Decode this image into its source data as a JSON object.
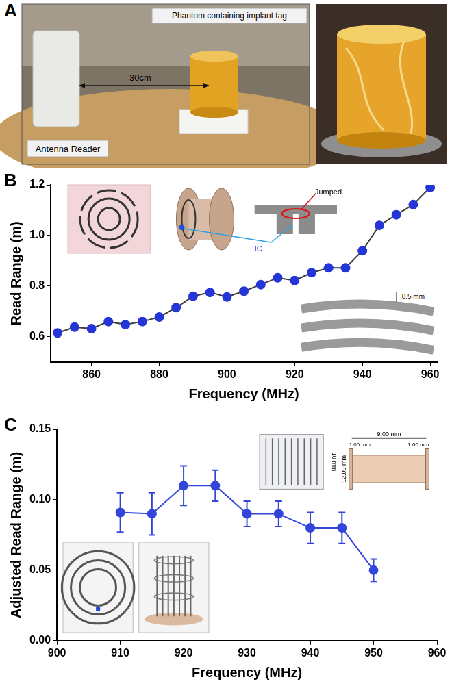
{
  "panels": [
    {
      "letter": "A",
      "texts": {
        "phantom": "Phantom containing implant tag",
        "distance": "30cm",
        "reader": "Antenna Reader"
      }
    }
  ],
  "chart_data": [
    {
      "panel": "B",
      "type": "line",
      "x": [
        850,
        855,
        860,
        865,
        870,
        875,
        880,
        885,
        890,
        895,
        900,
        905,
        910,
        915,
        920,
        925,
        930,
        935,
        940,
        945,
        950,
        955,
        960
      ],
      "values": [
        0.615,
        0.638,
        0.632,
        0.66,
        0.648,
        0.66,
        0.678,
        0.715,
        0.76,
        0.775,
        0.757,
        0.78,
        0.806,
        0.833,
        0.822,
        0.853,
        0.872,
        0.872,
        0.94,
        1.04,
        1.082,
        1.122,
        1.19
      ],
      "errors": [
        0.004,
        0.004,
        0.004,
        0.004,
        0.004,
        0.004,
        0.004,
        0.004,
        0.004,
        0.004,
        0.004,
        0.004,
        0.004,
        0.004,
        0.004,
        0.004,
        0.004,
        0.004,
        0.01,
        0.012,
        0.012,
        0.006,
        0.008
      ],
      "color": "#2536d8",
      "marker": "circle",
      "line_style": "solid",
      "x_label": "Frequency (MHz)",
      "y_label": "Read Range (m)",
      "xlim": [
        848,
        962
      ],
      "xticks": [
        860,
        880,
        900,
        920,
        940,
        960
      ],
      "ylim": [
        0.5,
        1.2
      ],
      "yticks": [
        0.6,
        0.8,
        {
          "value": 1,
          "label": "1.0"
        },
        1.2
      ],
      "grid": false,
      "annotations": [
        "Jumped",
        "IC",
        "0.5 mm"
      ]
    },
    {
      "panel": "C",
      "type": "line",
      "x": [
        910,
        915,
        920,
        925,
        930,
        935,
        940,
        945,
        950
      ],
      "values": [
        0.091,
        0.09,
        0.11,
        0.11,
        0.09,
        0.09,
        0.08,
        0.08,
        0.05
      ],
      "errors": [
        0.014,
        0.015,
        0.014,
        0.011,
        0.009,
        0.009,
        0.011,
        0.011,
        0.008
      ],
      "color": "#3346d9",
      "marker": "circle",
      "line_style": "solid",
      "x_label": "Frequency (MHz)",
      "y_label": "Adjusted Read Range (m)",
      "xlim": [
        900,
        960
      ],
      "xticks": [
        900,
        910,
        920,
        930,
        940,
        950,
        960
      ],
      "ylim": [
        0,
        0.15
      ],
      "yticks": [
        {
          "value": 0,
          "label": "0.00"
        },
        {
          "value": 0.05,
          "label": "0.05"
        },
        {
          "value": 0.1,
          "label": "0.10"
        },
        {
          "value": 0.15,
          "label": "0.15"
        }
      ],
      "grid": false,
      "annotations": [
        "10 mm",
        "9.00 mm",
        "1.00 mm",
        "1.00 mm",
        "12.00 mm"
      ]
    }
  ]
}
